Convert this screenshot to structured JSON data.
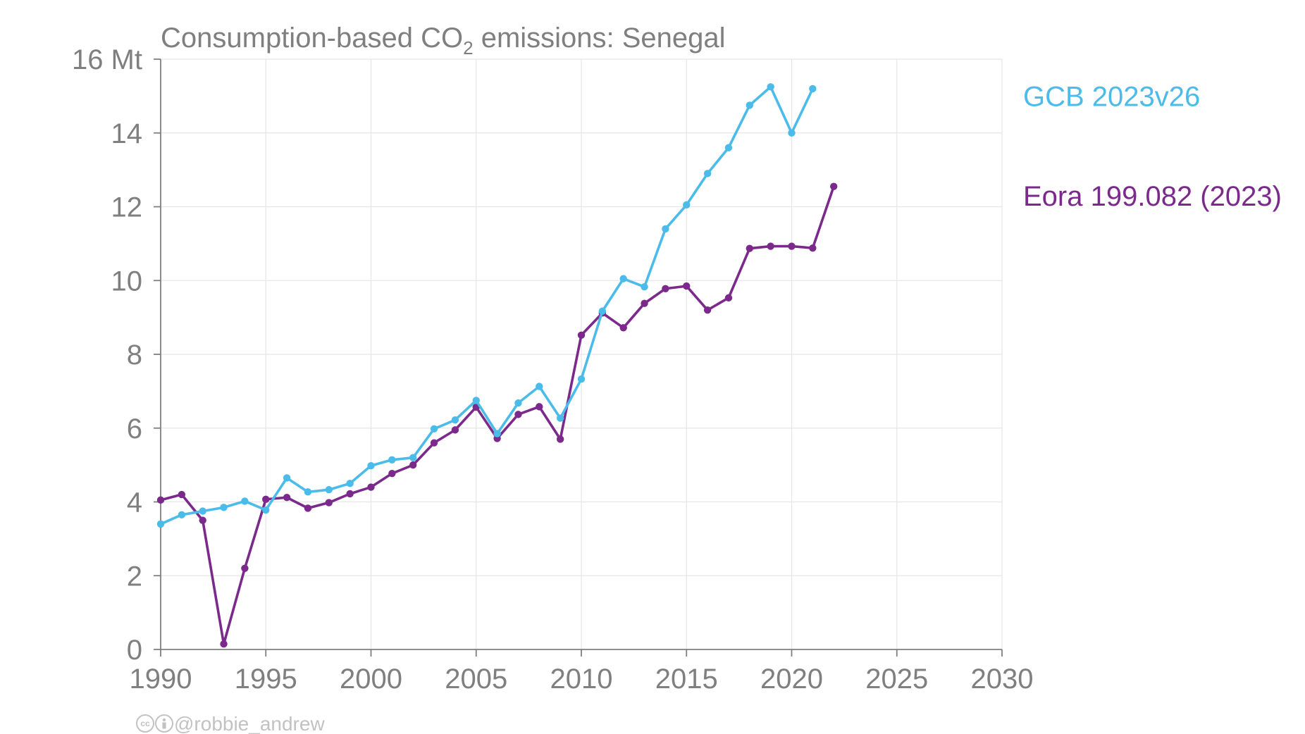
{
  "chart_data": {
    "type": "line",
    "title": {
      "prefix": "Consumption-based CO",
      "subscript": "2",
      "suffix": " emissions: Senegal"
    },
    "xlim": [
      1990,
      2030
    ],
    "ylim": [
      0,
      16
    ],
    "x_ticks": [
      1990,
      1995,
      2000,
      2005,
      2010,
      2015,
      2020,
      2025,
      2030
    ],
    "y_ticks": [
      0,
      2,
      4,
      6,
      8,
      10,
      12,
      14,
      16
    ],
    "y_tick_labels": [
      "0",
      "2",
      "4",
      "6",
      "8",
      "10",
      "12",
      "14",
      "16 Mt"
    ],
    "grid": true,
    "legend_placement": "right, beside line ends",
    "series": [
      {
        "name": "GCB 2023v26",
        "color": "#4bbce9",
        "x": [
          1990,
          1991,
          1992,
          1993,
          1994,
          1995,
          1996,
          1997,
          1998,
          1999,
          2000,
          2001,
          2002,
          2003,
          2004,
          2005,
          2006,
          2007,
          2008,
          2009,
          2010,
          2011,
          2012,
          2013,
          2014,
          2015,
          2016,
          2017,
          2018,
          2019,
          2020,
          2021
        ],
        "values": [
          3.4,
          3.65,
          3.75,
          3.85,
          4.02,
          3.78,
          4.65,
          4.27,
          4.33,
          4.5,
          4.98,
          5.14,
          5.2,
          5.98,
          6.22,
          6.75,
          5.85,
          6.68,
          7.13,
          6.27,
          7.33,
          9.17,
          10.05,
          9.83,
          11.4,
          12.05,
          12.9,
          13.6,
          14.75,
          15.25,
          14.0,
          15.2
        ]
      },
      {
        "name": "Eora 199.082 (2023)",
        "color": "#7b2a8c",
        "x": [
          1990,
          1991,
          1992,
          1993,
          1994,
          1995,
          1996,
          1997,
          1998,
          1999,
          2000,
          2001,
          2002,
          2003,
          2004,
          2005,
          2006,
          2007,
          2008,
          2009,
          2010,
          2011,
          2012,
          2013,
          2014,
          2015,
          2016,
          2017,
          2018,
          2019,
          2020,
          2021,
          2022
        ],
        "values": [
          4.05,
          4.2,
          3.5,
          0.15,
          2.2,
          4.07,
          4.12,
          3.83,
          3.98,
          4.22,
          4.4,
          4.77,
          5.0,
          5.6,
          5.95,
          6.57,
          5.72,
          6.37,
          6.58,
          5.7,
          8.52,
          9.12,
          8.72,
          9.38,
          9.78,
          9.85,
          9.2,
          9.53,
          10.87,
          10.93,
          10.93,
          10.88,
          12.55
        ]
      }
    ]
  },
  "credit": {
    "icon_names": [
      "cc-icon",
      "by-icon"
    ],
    "text": "@robbie_andrew"
  }
}
